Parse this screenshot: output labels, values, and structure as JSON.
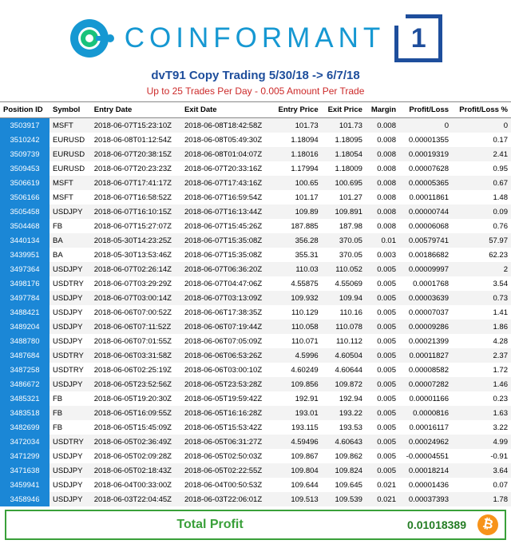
{
  "brand": "COINFORMANT",
  "box_number": "1",
  "subtitle": "dvT91 Copy Trading 5/30/18 -> 6/7/18",
  "caption": "Up to 25 Trades Per Day - 0.005 Amount Per Trade",
  "columns": [
    "Position ID",
    "Symbol",
    "Entry Date",
    "Exit Date",
    "Entry Price",
    "Exit Price",
    "Margin",
    "Profit/Loss",
    "Profit/Loss %"
  ],
  "footer_label": "Total Profit",
  "footer_value": "0.01018389",
  "logo_colors": {
    "outer": "#1698d2",
    "inner": "#19c27b",
    "hole": "#ffffff"
  },
  "rows": [
    {
      "pid": "3503917",
      "sym": "MSFT",
      "entry": "2018-06-07T15:23:10Z",
      "exit": "2018-06-08T18:42:58Z",
      "ep": "101.73",
      "xp": "101.73",
      "m": "0.008",
      "pl": "0",
      "plp": "0"
    },
    {
      "pid": "3510242",
      "sym": "EURUSD",
      "entry": "2018-06-08T01:12:54Z",
      "exit": "2018-06-08T05:49:30Z",
      "ep": "1.18094",
      "xp": "1.18095",
      "m": "0.008",
      "pl": "0.00001355",
      "plp": "0.17"
    },
    {
      "pid": "3509739",
      "sym": "EURUSD",
      "entry": "2018-06-07T20:38:15Z",
      "exit": "2018-06-08T01:04:07Z",
      "ep": "1.18016",
      "xp": "1.18054",
      "m": "0.008",
      "pl": "0.00019319",
      "plp": "2.41"
    },
    {
      "pid": "3509453",
      "sym": "EURUSD",
      "entry": "2018-06-07T20:23:23Z",
      "exit": "2018-06-07T20:33:16Z",
      "ep": "1.17994",
      "xp": "1.18009",
      "m": "0.008",
      "pl": "0.00007628",
      "plp": "0.95"
    },
    {
      "pid": "3506619",
      "sym": "MSFT",
      "entry": "2018-06-07T17:41:17Z",
      "exit": "2018-06-07T17:43:16Z",
      "ep": "100.65",
      "xp": "100.695",
      "m": "0.008",
      "pl": "0.00005365",
      "plp": "0.67"
    },
    {
      "pid": "3506166",
      "sym": "MSFT",
      "entry": "2018-06-07T16:58:52Z",
      "exit": "2018-06-07T16:59:54Z",
      "ep": "101.17",
      "xp": "101.27",
      "m": "0.008",
      "pl": "0.00011861",
      "plp": "1.48"
    },
    {
      "pid": "3505458",
      "sym": "USDJPY",
      "entry": "2018-06-07T16:10:15Z",
      "exit": "2018-06-07T16:13:44Z",
      "ep": "109.89",
      "xp": "109.891",
      "m": "0.008",
      "pl": "0.00000744",
      "plp": "0.09"
    },
    {
      "pid": "3504468",
      "sym": "FB",
      "entry": "2018-06-07T15:27:07Z",
      "exit": "2018-06-07T15:45:26Z",
      "ep": "187.885",
      "xp": "187.98",
      "m": "0.008",
      "pl": "0.00006068",
      "plp": "0.76"
    },
    {
      "pid": "3440134",
      "sym": "BA",
      "entry": "2018-05-30T14:23:25Z",
      "exit": "2018-06-07T15:35:08Z",
      "ep": "356.28",
      "xp": "370.05",
      "m": "0.01",
      "pl": "0.00579741",
      "plp": "57.97"
    },
    {
      "pid": "3439951",
      "sym": "BA",
      "entry": "2018-05-30T13:53:46Z",
      "exit": "2018-06-07T15:35:08Z",
      "ep": "355.31",
      "xp": "370.05",
      "m": "0.003",
      "pl": "0.00186682",
      "plp": "62.23"
    },
    {
      "pid": "3497364",
      "sym": "USDJPY",
      "entry": "2018-06-07T02:26:14Z",
      "exit": "2018-06-07T06:36:20Z",
      "ep": "110.03",
      "xp": "110.052",
      "m": "0.005",
      "pl": "0.00009997",
      "plp": "2"
    },
    {
      "pid": "3498176",
      "sym": "USDTRY",
      "entry": "2018-06-07T03:29:29Z",
      "exit": "2018-06-07T04:47:06Z",
      "ep": "4.55875",
      "xp": "4.55069",
      "m": "0.005",
      "pl": "0.0001768",
      "plp": "3.54"
    },
    {
      "pid": "3497784",
      "sym": "USDJPY",
      "entry": "2018-06-07T03:00:14Z",
      "exit": "2018-06-07T03:13:09Z",
      "ep": "109.932",
      "xp": "109.94",
      "m": "0.005",
      "pl": "0.00003639",
      "plp": "0.73"
    },
    {
      "pid": "3488421",
      "sym": "USDJPY",
      "entry": "2018-06-06T07:00:52Z",
      "exit": "2018-06-06T17:38:35Z",
      "ep": "110.129",
      "xp": "110.16",
      "m": "0.005",
      "pl": "0.00007037",
      "plp": "1.41"
    },
    {
      "pid": "3489204",
      "sym": "USDJPY",
      "entry": "2018-06-06T07:11:52Z",
      "exit": "2018-06-06T07:19:44Z",
      "ep": "110.058",
      "xp": "110.078",
      "m": "0.005",
      "pl": "0.00009286",
      "plp": "1.86"
    },
    {
      "pid": "3488780",
      "sym": "USDJPY",
      "entry": "2018-06-06T07:01:55Z",
      "exit": "2018-06-06T07:05:09Z",
      "ep": "110.071",
      "xp": "110.112",
      "m": "0.005",
      "pl": "0.00021399",
      "plp": "4.28"
    },
    {
      "pid": "3487684",
      "sym": "USDTRY",
      "entry": "2018-06-06T03:31:58Z",
      "exit": "2018-06-06T06:53:26Z",
      "ep": "4.5996",
      "xp": "4.60504",
      "m": "0.005",
      "pl": "0.00011827",
      "plp": "2.37"
    },
    {
      "pid": "3487258",
      "sym": "USDTRY",
      "entry": "2018-06-06T02:25:19Z",
      "exit": "2018-06-06T03:00:10Z",
      "ep": "4.60249",
      "xp": "4.60644",
      "m": "0.005",
      "pl": "0.00008582",
      "plp": "1.72"
    },
    {
      "pid": "3486672",
      "sym": "USDJPY",
      "entry": "2018-06-05T23:52:56Z",
      "exit": "2018-06-05T23:53:28Z",
      "ep": "109.856",
      "xp": "109.872",
      "m": "0.005",
      "pl": "0.00007282",
      "plp": "1.46"
    },
    {
      "pid": "3485321",
      "sym": "FB",
      "entry": "2018-06-05T19:20:30Z",
      "exit": "2018-06-05T19:59:42Z",
      "ep": "192.91",
      "xp": "192.94",
      "m": "0.005",
      "pl": "0.00001166",
      "plp": "0.23"
    },
    {
      "pid": "3483518",
      "sym": "FB",
      "entry": "2018-06-05T16:09:55Z",
      "exit": "2018-06-05T16:16:28Z",
      "ep": "193.01",
      "xp": "193.22",
      "m": "0.005",
      "pl": "0.0000816",
      "plp": "1.63"
    },
    {
      "pid": "3482699",
      "sym": "FB",
      "entry": "2018-06-05T15:45:09Z",
      "exit": "2018-06-05T15:53:42Z",
      "ep": "193.115",
      "xp": "193.53",
      "m": "0.005",
      "pl": "0.00016117",
      "plp": "3.22"
    },
    {
      "pid": "3472034",
      "sym": "USDTRY",
      "entry": "2018-06-05T02:36:49Z",
      "exit": "2018-06-05T06:31:27Z",
      "ep": "4.59496",
      "xp": "4.60643",
      "m": "0.005",
      "pl": "0.00024962",
      "plp": "4.99"
    },
    {
      "pid": "3471299",
      "sym": "USDJPY",
      "entry": "2018-06-05T02:09:28Z",
      "exit": "2018-06-05T02:50:03Z",
      "ep": "109.867",
      "xp": "109.862",
      "m": "0.005",
      "pl": "-0.00004551",
      "plp": "-0.91"
    },
    {
      "pid": "3471638",
      "sym": "USDJPY",
      "entry": "2018-06-05T02:18:43Z",
      "exit": "2018-06-05T02:22:55Z",
      "ep": "109.804",
      "xp": "109.824",
      "m": "0.005",
      "pl": "0.00018214",
      "plp": "3.64"
    },
    {
      "pid": "3459941",
      "sym": "USDJPY",
      "entry": "2018-06-04T00:33:00Z",
      "exit": "2018-06-04T00:50:53Z",
      "ep": "109.644",
      "xp": "109.645",
      "m": "0.021",
      "pl": "0.00001436",
      "plp": "0.07"
    },
    {
      "pid": "3458946",
      "sym": "USDJPY",
      "entry": "2018-06-03T22:04:45Z",
      "exit": "2018-06-03T22:06:01Z",
      "ep": "109.513",
      "xp": "109.539",
      "m": "0.021",
      "pl": "0.00037393",
      "plp": "1.78"
    }
  ]
}
